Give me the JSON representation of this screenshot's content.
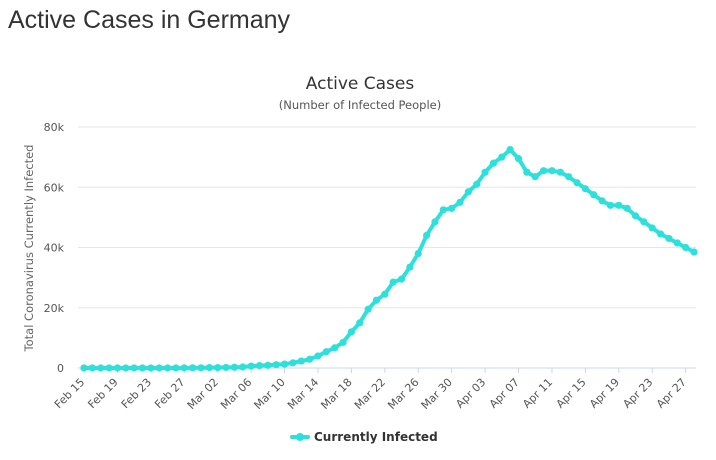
{
  "page": {
    "title": "Active Cases in Germany"
  },
  "colors": {
    "series": "#2ee0dc",
    "grid": "#e6e6e6",
    "text": "#333333"
  },
  "chart_data": {
    "type": "line",
    "title": "Active Cases",
    "subtitle": "(Number of Infected People)",
    "xlabel": "",
    "ylabel": "Total Coronavirus Currently Infected",
    "ylim": [
      0,
      80000
    ],
    "yticks": [
      0,
      20000,
      40000,
      60000,
      80000
    ],
    "ytick_labels": [
      "0",
      "20k",
      "40k",
      "60k",
      "80k"
    ],
    "xtick_labels": [
      "Feb 15",
      "Feb 19",
      "Feb 23",
      "Feb 27",
      "Mar 02",
      "Mar 06",
      "Mar 10",
      "Mar 14",
      "Mar 18",
      "Mar 22",
      "Mar 26",
      "Mar 30",
      "Apr 03",
      "Apr 07",
      "Apr 11",
      "Apr 15",
      "Apr 19",
      "Apr 23",
      "Apr 27"
    ],
    "grid": true,
    "legend": "bottom-center",
    "x": [
      "Feb 15",
      "Feb 16",
      "Feb 17",
      "Feb 18",
      "Feb 19",
      "Feb 20",
      "Feb 21",
      "Feb 22",
      "Feb 23",
      "Feb 24",
      "Feb 25",
      "Feb 26",
      "Feb 27",
      "Feb 28",
      "Feb 29",
      "Mar 01",
      "Mar 02",
      "Mar 03",
      "Mar 04",
      "Mar 05",
      "Mar 06",
      "Mar 07",
      "Mar 08",
      "Mar 09",
      "Mar 10",
      "Mar 11",
      "Mar 12",
      "Mar 13",
      "Mar 14",
      "Mar 15",
      "Mar 16",
      "Mar 17",
      "Mar 18",
      "Mar 19",
      "Mar 20",
      "Mar 21",
      "Mar 22",
      "Mar 23",
      "Mar 24",
      "Mar 25",
      "Mar 26",
      "Mar 27",
      "Mar 28",
      "Mar 29",
      "Mar 30",
      "Mar 31",
      "Apr 01",
      "Apr 02",
      "Apr 03",
      "Apr 04",
      "Apr 05",
      "Apr 06",
      "Apr 07",
      "Apr 08",
      "Apr 09",
      "Apr 10",
      "Apr 11",
      "Apr 12",
      "Apr 13",
      "Apr 14",
      "Apr 15",
      "Apr 16",
      "Apr 17",
      "Apr 18",
      "Apr 19",
      "Apr 20",
      "Apr 21",
      "Apr 22",
      "Apr 23",
      "Apr 24",
      "Apr 25",
      "Apr 26",
      "Apr 27",
      "Apr 28"
    ],
    "series": [
      {
        "name": "Currently Infected",
        "values": [
          5,
          5,
          5,
          5,
          5,
          5,
          5,
          5,
          5,
          5,
          10,
          20,
          40,
          60,
          70,
          120,
          150,
          180,
          240,
          330,
          620,
          800,
          900,
          1100,
          1300,
          1700,
          2300,
          2900,
          4000,
          5400,
          6700,
          8500,
          12000,
          15000,
          19500,
          22500,
          24500,
          28500,
          29500,
          33500,
          38000,
          44000,
          48500,
          52500,
          53000,
          55000,
          58500,
          61000,
          65000,
          68000,
          70000,
          72500,
          69500,
          65000,
          63500,
          65500,
          65500,
          65000,
          63500,
          61500,
          59500,
          57500,
          55500,
          54000,
          54000,
          53000,
          50500,
          48500,
          46500,
          44500,
          43000,
          41500,
          40000,
          38500
        ]
      }
    ]
  }
}
